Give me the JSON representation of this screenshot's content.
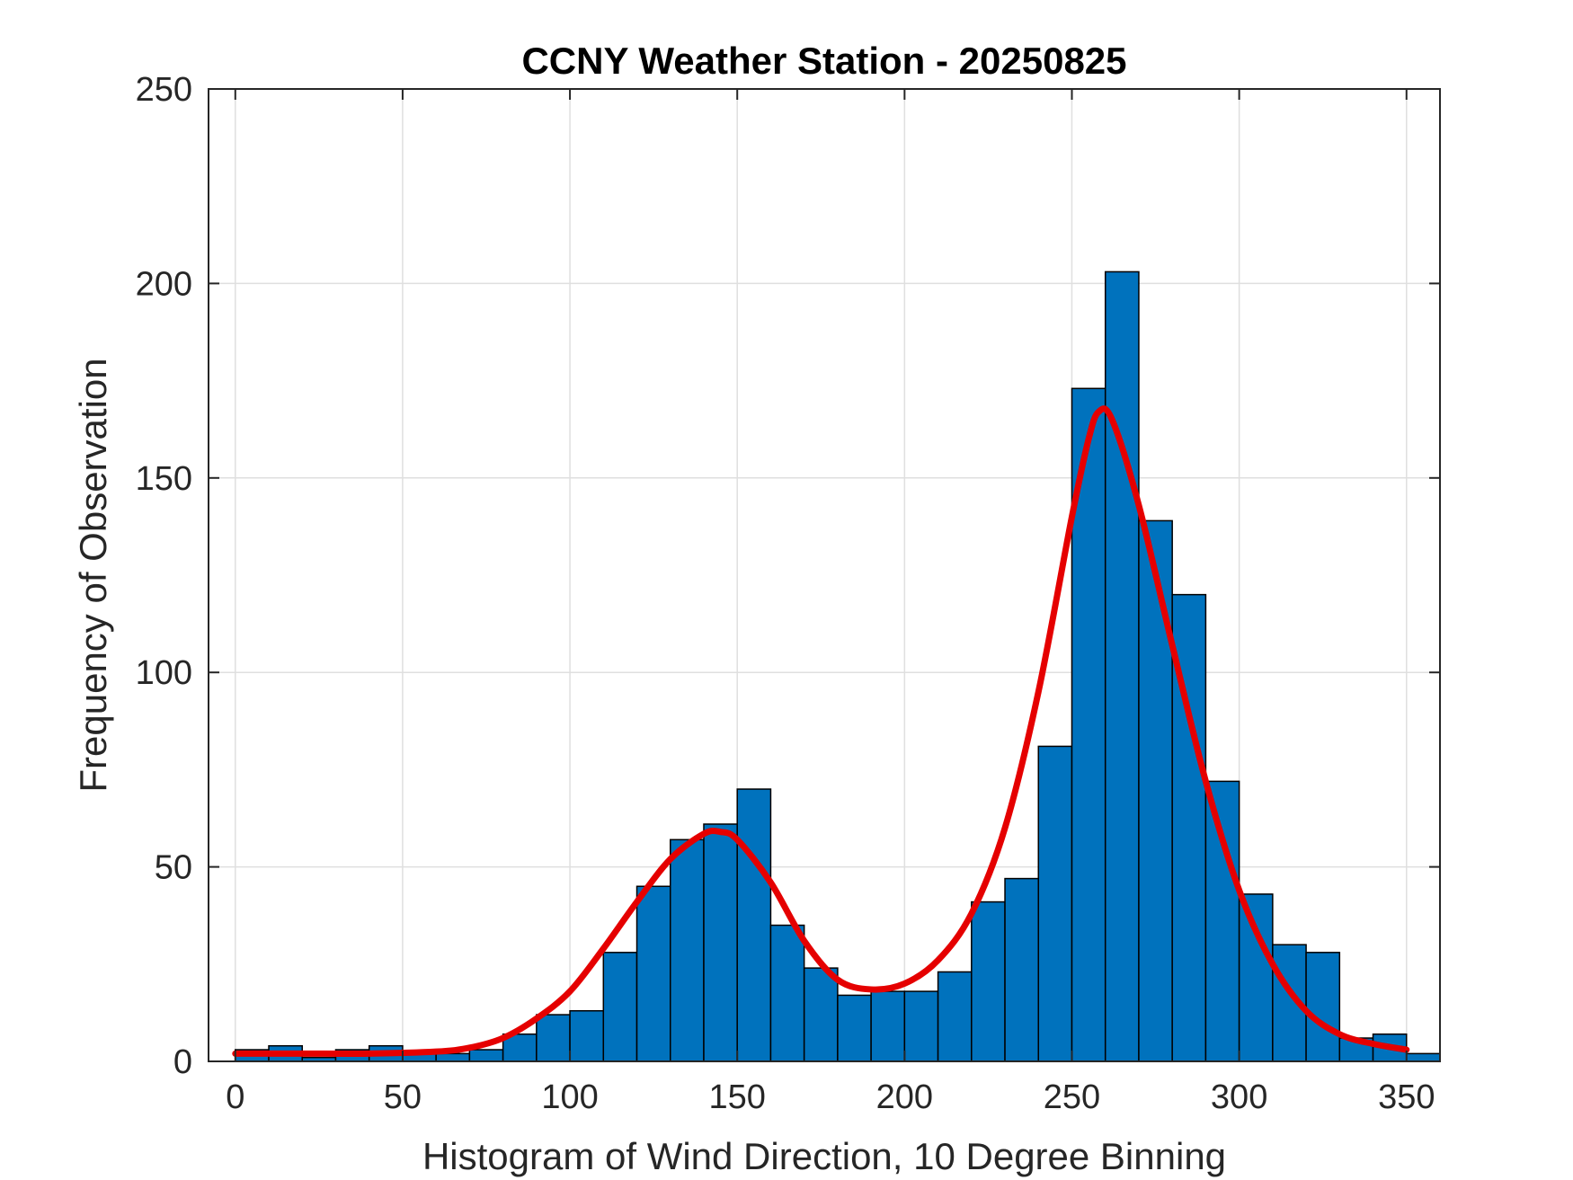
{
  "chart_data": {
    "type": "bar",
    "title": "CCNY Weather Station - 20250825",
    "xlabel": "Histogram of Wind Direction, 10 Degree Binning",
    "ylabel": "Frequency of Observation",
    "xlim": [
      -8,
      360
    ],
    "ylim": [
      0,
      250
    ],
    "xticks": [
      0,
      50,
      100,
      150,
      200,
      250,
      300,
      350
    ],
    "yticks": [
      0,
      50,
      100,
      150,
      200,
      250
    ],
    "grid": true,
    "bin_width": 10,
    "bins": [
      {
        "start": 0,
        "count": 3
      },
      {
        "start": 10,
        "count": 4
      },
      {
        "start": 20,
        "count": 1
      },
      {
        "start": 30,
        "count": 3
      },
      {
        "start": 40,
        "count": 4
      },
      {
        "start": 50,
        "count": 2
      },
      {
        "start": 60,
        "count": 2
      },
      {
        "start": 70,
        "count": 3
      },
      {
        "start": 80,
        "count": 7
      },
      {
        "start": 90,
        "count": 12
      },
      {
        "start": 100,
        "count": 13
      },
      {
        "start": 110,
        "count": 28
      },
      {
        "start": 120,
        "count": 45
      },
      {
        "start": 130,
        "count": 57
      },
      {
        "start": 140,
        "count": 61
      },
      {
        "start": 150,
        "count": 70
      },
      {
        "start": 160,
        "count": 35
      },
      {
        "start": 170,
        "count": 24
      },
      {
        "start": 180,
        "count": 17
      },
      {
        "start": 190,
        "count": 18
      },
      {
        "start": 200,
        "count": 18
      },
      {
        "start": 210,
        "count": 23
      },
      {
        "start": 220,
        "count": 41
      },
      {
        "start": 230,
        "count": 47
      },
      {
        "start": 240,
        "count": 81
      },
      {
        "start": 250,
        "count": 173
      },
      {
        "start": 260,
        "count": 203
      },
      {
        "start": 270,
        "count": 139
      },
      {
        "start": 280,
        "count": 120
      },
      {
        "start": 290,
        "count": 72
      },
      {
        "start": 300,
        "count": 43
      },
      {
        "start": 310,
        "count": 30
      },
      {
        "start": 320,
        "count": 28
      },
      {
        "start": 330,
        "count": 6
      },
      {
        "start": 340,
        "count": 7
      },
      {
        "start": 350,
        "count": 2
      }
    ],
    "fit_curve": {
      "points": [
        [
          0,
          2
        ],
        [
          20,
          2
        ],
        [
          40,
          2
        ],
        [
          60,
          2.5
        ],
        [
          70,
          3.5
        ],
        [
          80,
          6
        ],
        [
          90,
          11
        ],
        [
          100,
          18
        ],
        [
          110,
          29
        ],
        [
          120,
          41
        ],
        [
          130,
          52
        ],
        [
          140,
          58.5
        ],
        [
          145,
          59
        ],
        [
          150,
          57
        ],
        [
          160,
          46
        ],
        [
          170,
          31
        ],
        [
          180,
          21
        ],
        [
          190,
          18.5
        ],
        [
          200,
          20
        ],
        [
          210,
          26
        ],
        [
          220,
          38
        ],
        [
          230,
          60
        ],
        [
          240,
          95
        ],
        [
          250,
          140
        ],
        [
          255,
          160
        ],
        [
          258,
          167
        ],
        [
          262,
          165
        ],
        [
          270,
          143
        ],
        [
          280,
          107
        ],
        [
          290,
          72
        ],
        [
          300,
          44
        ],
        [
          310,
          25
        ],
        [
          320,
          13
        ],
        [
          330,
          7
        ],
        [
          340,
          4.5
        ],
        [
          350,
          3
        ]
      ]
    },
    "colors": {
      "bar_fill": "#0072BD",
      "bar_edge": "#000000",
      "fit_line": "#E50000",
      "grid": "#DFDFDF",
      "axis": "#262626"
    }
  }
}
